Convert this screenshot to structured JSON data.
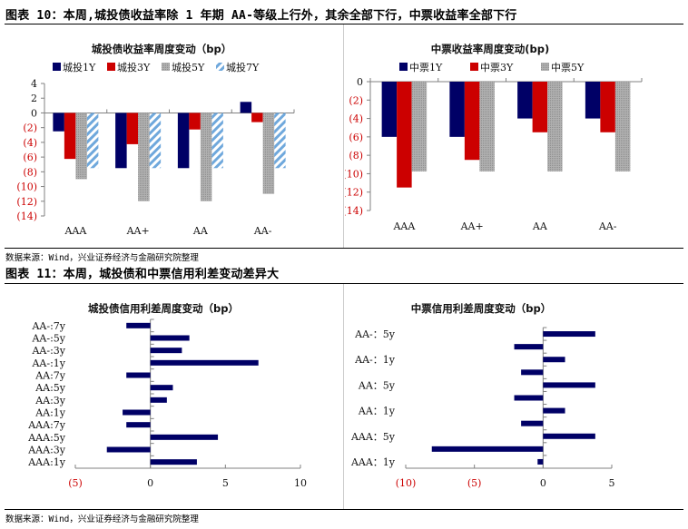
{
  "figure10": {
    "title": "图表 10：本周,城投债收益率除 1 年期 AA-等级上行外，其余全部下行，中票收益率全部下行",
    "source": "数据来源：Wind，兴业证券经济与金融研究院整理"
  },
  "figure11": {
    "title": "图表 11：本周，城投债和中票信用利差变动差异大",
    "source": "数据来源：Wind，兴业证券经济与金融研究院整理"
  },
  "colors": {
    "navy": "#000066",
    "red": "#cc0000",
    "gray": "#a6a6a6",
    "lightblue": "#6fa8dc",
    "negative_tick": "#cc0000",
    "axis": "#808080"
  },
  "chart_data": [
    {
      "type": "bar",
      "title": "城投债收益率周度变动（bp）",
      "categories": [
        "AAA",
        "AA+",
        "AA",
        "AA-"
      ],
      "series": [
        {
          "name": "城投1Y",
          "values": [
            -2.5,
            -7.5,
            -7.5,
            1.5
          ]
        },
        {
          "name": "城投3Y",
          "values": [
            -6.25,
            -4.25,
            -2.25,
            -1.25
          ]
        },
        {
          "name": "城投5Y",
          "values": [
            -9,
            -12,
            -12,
            -11
          ]
        },
        {
          "name": "城投7Y",
          "values": [
            -7.5,
            -7.5,
            -7.5,
            -7.5
          ]
        }
      ],
      "yticks": [
        "4",
        "2",
        "0",
        "(2)",
        "(4)",
        "(6)",
        "(8)",
        "(10)",
        "(12)",
        "(14)"
      ],
      "ylim": [
        -14,
        4
      ],
      "legend_position": "top",
      "grid": false,
      "xlabel": "",
      "ylabel": ""
    },
    {
      "type": "bar",
      "title": "中票收益率周度变动(bp)",
      "categories": [
        "AAA",
        "AA+",
        "AA",
        "AA-"
      ],
      "series": [
        {
          "name": "中票1Y",
          "values": [
            -6,
            -6,
            -4,
            -4
          ]
        },
        {
          "name": "中票3Y",
          "values": [
            -11.5,
            -8.5,
            -5.5,
            -5.5
          ]
        },
        {
          "name": "中票5Y",
          "values": [
            -9.75,
            -9.75,
            -9.75,
            -9.75
          ]
        }
      ],
      "yticks": [
        "0",
        "(2)",
        "(4)",
        "(6)",
        "(8)",
        "(10)",
        "(12)",
        "(14)"
      ],
      "ylim": [
        -14,
        0
      ],
      "legend_position": "top",
      "grid": false,
      "xlabel": "",
      "ylabel": ""
    },
    {
      "type": "bar",
      "orientation": "horizontal",
      "title": "城投债信用利差周度变动（bp）",
      "categories": [
        "AA-:7y",
        "AA-:5y",
        "AA-:3y",
        "AA-:1y",
        "AA:7y",
        "AA:5y",
        "AA:3y",
        "AA:1y",
        "AAA:7y",
        "AAA:5y",
        "AAA:3y",
        "AAA:1y"
      ],
      "values": [
        -1.6,
        2.6,
        2.1,
        7.2,
        -1.6,
        1.5,
        1.1,
        -1.85,
        -1.6,
        4.5,
        -2.9,
        3.1
      ],
      "xticks": [
        "(5)",
        "0",
        "5",
        "10"
      ],
      "xlim": [
        -5,
        10
      ],
      "grid": false
    },
    {
      "type": "bar",
      "orientation": "horizontal",
      "title": "中票信用利差周度变动（bp）",
      "categories": [
        "AA-：5y",
        "",
        "AA-：1y",
        "",
        "AA：5y",
        "",
        "AA：1y",
        "",
        "AAA：5y",
        "",
        "AAA：1y"
      ],
      "values": [
        3.8,
        -2.1,
        1.6,
        -1.6,
        3.8,
        -2.1,
        1.6,
        -1.6,
        3.8,
        -8.1,
        -0.4
      ],
      "xticks": [
        "(10)",
        "(5)",
        "0",
        "5"
      ],
      "xlim": [
        -10,
        5
      ],
      "grid": false
    }
  ]
}
